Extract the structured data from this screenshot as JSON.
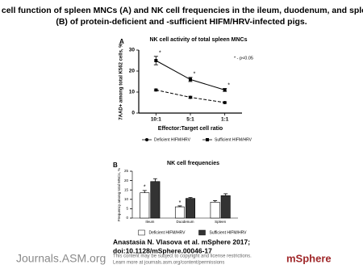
{
  "header": {
    "title_lines": [
      "NK cell function of spleen MNCs (A) and NK cell frequencies in the ileum, duodenum, and spleen",
      "(B) of protein-deficient and -sufficient HIFM/HRV-infected pigs."
    ]
  },
  "chart_data": [
    {
      "type": "line",
      "panel": "A",
      "title": "NK cell activity of total spleen MNCs",
      "annotation": "* - p<0.05",
      "ylabel": "7AAD+ among total K562 cells, %",
      "xlabel": "Effector:Target cell ratio",
      "categories": [
        "10:1",
        "5:1",
        "1:1"
      ],
      "ylim": [
        0,
        30
      ],
      "yticks": [
        0,
        10,
        20,
        30
      ],
      "legend": "bottom",
      "series": [
        {
          "name": "Deficient HIFM/HRV",
          "color": "#000000",
          "line_style": "dashed",
          "marker": "circle",
          "values": [
            11,
            7.5,
            5
          ],
          "errors": [
            0.5,
            0.5,
            0.4
          ]
        },
        {
          "name": "Sufficient HIFM/HRV",
          "color": "#000000",
          "line_style": "solid",
          "marker": "square",
          "values": [
            25,
            16,
            11
          ],
          "errors": [
            2,
            1,
            0.7
          ],
          "significance": [
            "*",
            "*",
            "*"
          ]
        }
      ]
    },
    {
      "type": "bar",
      "panel": "B",
      "title": "NK cell frequencies",
      "ylabel": "Frequency among total MNCs, %",
      "categories": [
        "Ileum",
        "Duodenum",
        "Spleen"
      ],
      "ylim": [
        0,
        25
      ],
      "yticks": [
        0,
        5,
        10,
        15,
        20,
        25
      ],
      "legend": "bottom",
      "series": [
        {
          "name": "Deficient HIFM/HRV",
          "color": "#ffffff",
          "values": [
            13.5,
            6,
            8.5
          ],
          "errors": [
            1.2,
            0.5,
            0.8
          ],
          "significance": [
            "*",
            "*",
            null
          ]
        },
        {
          "name": "Sufficient HIFM/HRV",
          "color": "#333333",
          "values": [
            19.5,
            10.5,
            12
          ],
          "errors": [
            1.5,
            0.5,
            1
          ]
        }
      ]
    }
  ],
  "citation": {
    "lines": [
      "Anastasia N. Vlasova et al. mSphere 2017;",
      "doi:10.1128/mSphere.00046-17"
    ]
  },
  "footer": {
    "left": "Journals.ASM.org",
    "notice_lines": [
      "This content may be subject to copyright and license restrictions.",
      "Learn more at journals.asm.org/content/permissions"
    ],
    "right": "mSphere"
  }
}
